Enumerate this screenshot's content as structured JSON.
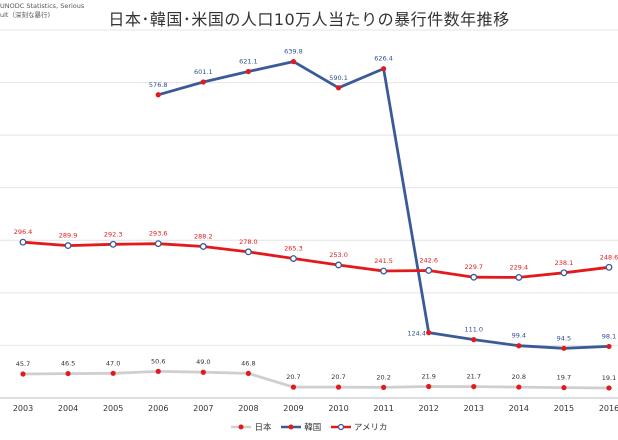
{
  "header": {
    "title": "日本･韓国･米国の人口10万人当たりの暴行件数年推移",
    "source_line1": "UNODC Statistics, Serious",
    "source_line2": "ult（深刻な暴行)"
  },
  "chart_data": {
    "type": "line",
    "title": "日本･韓国･米国の人口10万人当たりの暴行件数年推移",
    "categories": [
      "2003",
      "2004",
      "2005",
      "2006",
      "2007",
      "2008",
      "2009",
      "2010",
      "2011",
      "2012",
      "2013",
      "2014",
      "2015",
      "2016"
    ],
    "xlabel": "",
    "ylabel": "",
    "ylim": [
      0,
      700
    ],
    "grid": true,
    "legend_position": "bottom",
    "series": [
      {
        "name": "日本",
        "color": "#cfcfcf",
        "marker_color": "#e31a1c",
        "label_color": "#333333",
        "values": [
          45.7,
          46.5,
          47.0,
          50.6,
          49.0,
          46.8,
          20.7,
          20.7,
          20.2,
          21.9,
          21.7,
          20.8,
          19.7,
          19.1
        ],
        "labels": [
          "45.7",
          "46.5",
          "47.0",
          "50.6",
          "49.0",
          "46.8",
          "20.7",
          "20.7",
          "20.2",
          "21.9",
          "21.7",
          "20.8",
          "19.7",
          "19.1"
        ]
      },
      {
        "name": "韓国",
        "color": "#3a5a98",
        "marker_color": "#e31a1c",
        "label_color": "#2e4f8f",
        "values": [
          null,
          null,
          null,
          576.8,
          601.1,
          621.1,
          639.8,
          590.1,
          626.4,
          124.4,
          111.0,
          99.4,
          94.5,
          98.1
        ],
        "labels": [
          "",
          "",
          "",
          "576.8",
          "601.1",
          "621.1",
          "639.8",
          "590.1",
          "626.4",
          "124.4",
          "111.0",
          "99.4",
          "94.5",
          "98.1"
        ]
      },
      {
        "name": "アメリカ",
        "color": "#e31a1c",
        "marker_color": "#3a5a98",
        "label_color": "#e31a1c",
        "values": [
          296.4,
          289.9,
          292.3,
          293.6,
          288.2,
          278.0,
          265.3,
          253.0,
          241.5,
          242.6,
          229.7,
          229.4,
          238.1,
          248.6
        ],
        "labels": [
          "296.4",
          "289.9",
          "292.3",
          "293.6",
          "288.2",
          "278.0",
          "265.3",
          "253.0",
          "241.5",
          "242.6",
          "229.7",
          "229.4",
          "238.1",
          "248.6"
        ]
      }
    ]
  }
}
